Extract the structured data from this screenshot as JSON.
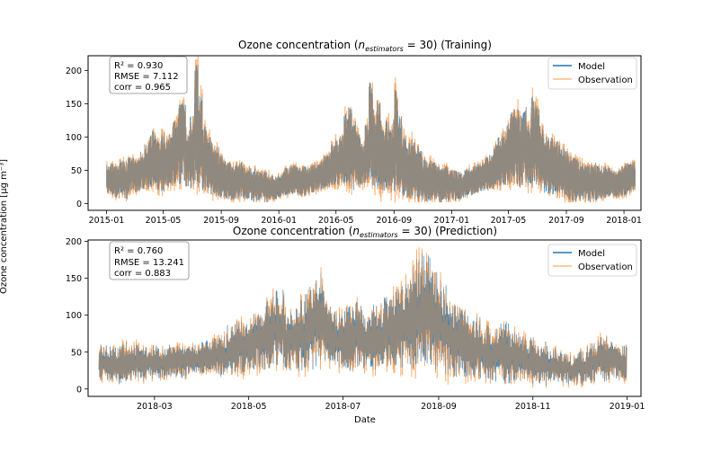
{
  "figure": {
    "ylabel": "Ozone concentration [μg m⁻³]",
    "xlabel": "Date"
  },
  "chart_data": [
    {
      "type": "line",
      "title_prefix": "Ozone concentration (",
      "title_var": "n",
      "title_sub": "estimators",
      "title_eq": " = 30) ",
      "title_suffix": "(Training)",
      "stats": {
        "r2_label": "R² =  0.930",
        "rmse_label": "RMSE =  7.112",
        "corr_label": "corr =  0.965"
      },
      "legend": {
        "placement": "upper-right",
        "entries": [
          "Model",
          "Observation"
        ]
      },
      "x_type": "date",
      "x_range": [
        "2014-11-23",
        "2018-02-06"
      ],
      "x_ticks": [
        "2015-01",
        "2015-05",
        "2015-09",
        "2016-01",
        "2016-05",
        "2016-09",
        "2017-01",
        "2017-05",
        "2017-09",
        "2018-01"
      ],
      "ylim": [
        -10,
        222
      ],
      "y_ticks": [
        0,
        50,
        100,
        150,
        200
      ],
      "x_start": "2015-01-01",
      "x_end": "2018-01-24",
      "series": [
        {
          "name": "Model",
          "color": "#1f77b4",
          "approx_weekly_max": [
            62,
            60,
            58,
            66,
            64,
            70,
            72,
            68,
            78,
            90,
            102,
            110,
            98,
            108,
            96,
            112,
            124,
            150,
            156,
            118,
            132,
            216,
            168,
            118,
            102,
            92,
            86,
            72,
            66,
            62,
            58,
            60,
            64,
            56,
            58,
            54,
            52,
            50,
            48,
            44,
            40,
            46,
            50,
            54,
            58,
            60,
            56,
            58,
            54,
            60,
            62,
            66,
            72,
            78,
            90,
            98,
            102,
            136,
            146,
            124,
            110,
            92,
            120,
            186,
            142,
            168,
            112,
            126,
            118,
            172,
            132,
            102,
            92,
            98,
            86,
            80,
            72,
            66,
            62,
            58,
            56,
            60,
            54,
            50,
            48,
            46,
            52,
            56,
            58,
            62,
            64,
            70,
            74,
            92,
            100,
            110,
            122,
            140,
            152,
            132,
            148,
            120,
            162,
            152,
            118,
            106,
            100,
            98,
            94,
            88,
            80,
            74,
            70,
            66,
            62,
            60,
            58,
            62,
            58,
            56,
            54,
            52,
            50,
            56,
            60,
            62,
            64
          ],
          "approx_weekly_min": [
            14,
            10,
            8,
            12,
            6,
            14,
            18,
            16,
            20,
            22,
            24,
            26,
            20,
            18,
            24,
            22,
            26,
            28,
            30,
            22,
            20,
            24,
            22,
            18,
            16,
            12,
            10,
            8,
            6,
            4,
            6,
            4,
            8,
            6,
            4,
            2,
            4,
            6,
            2,
            4,
            6,
            8,
            10,
            12,
            14,
            16,
            12,
            10,
            14,
            16,
            18,
            20,
            22,
            24,
            26,
            28,
            30,
            26,
            22,
            20,
            24,
            28,
            30,
            24,
            22,
            20,
            18,
            20,
            16,
            14,
            12,
            10,
            8,
            6,
            6,
            4,
            2,
            4,
            6,
            4,
            2,
            4,
            2,
            4,
            6,
            8,
            10,
            12,
            14,
            16,
            18,
            20,
            22,
            24,
            26,
            28,
            30,
            26,
            24,
            22,
            28,
            26,
            24,
            22,
            20,
            16,
            14,
            12,
            10,
            8,
            6,
            4,
            2,
            4,
            6,
            4,
            2,
            4,
            6,
            8,
            10,
            12,
            8,
            10,
            12,
            14,
            16
          ]
        },
        {
          "name": "Observation",
          "color": "#ff7f0e"
        }
      ]
    },
    {
      "type": "line",
      "title_prefix": "Ozone concentration (",
      "title_var": "n",
      "title_sub": "estimators",
      "title_eq": " = 30) ",
      "title_suffix": "(Prediction)",
      "stats": {
        "r2_label": "R² =  0.760",
        "rmse_label": "RMSE = 13.241",
        "corr_label": "corr =  0.883"
      },
      "legend": {
        "placement": "upper-right",
        "entries": [
          "Model",
          "Observation"
        ]
      },
      "x_type": "date",
      "x_range": [
        "2018-01-17",
        "2019-01-10"
      ],
      "x_ticks": [
        "2018-03",
        "2018-05",
        "2018-07",
        "2018-09",
        "2018-11",
        "2019-01"
      ],
      "ylim": [
        -10,
        202
      ],
      "y_ticks": [
        0,
        50,
        100,
        150,
        200
      ],
      "x_start": "2018-01-24",
      "x_end": "2018-12-31",
      "series": [
        {
          "name": "Model",
          "color": "#1f77b4",
          "approx_weekly_max": [
            60,
            58,
            64,
            62,
            58,
            60,
            56,
            60,
            58,
            62,
            66,
            70,
            74,
            88,
            96,
            102,
            112,
            128,
            136,
            108,
            122,
            142,
            158,
            118,
            106,
            112,
            120,
            104,
            116,
            128,
            138,
            150,
            178,
            190,
            160,
            142,
            118,
            108,
            98,
            88,
            82,
            96,
            78,
            72,
            70,
            66,
            58,
            50,
            46,
            52,
            62,
            72,
            66,
            60
          ],
          "approx_weekly_min": [
            10,
            8,
            6,
            12,
            10,
            14,
            12,
            16,
            14,
            18,
            20,
            22,
            18,
            16,
            20,
            24,
            26,
            28,
            30,
            24,
            22,
            26,
            30,
            32,
            28,
            24,
            30,
            26,
            22,
            30,
            28,
            26,
            24,
            22,
            20,
            18,
            16,
            14,
            12,
            10,
            8,
            6,
            8,
            10,
            6,
            4,
            6,
            8,
            4,
            6,
            8,
            10,
            12,
            10
          ]
        },
        {
          "name": "Observation",
          "color": "#ff7f0e"
        }
      ]
    }
  ]
}
